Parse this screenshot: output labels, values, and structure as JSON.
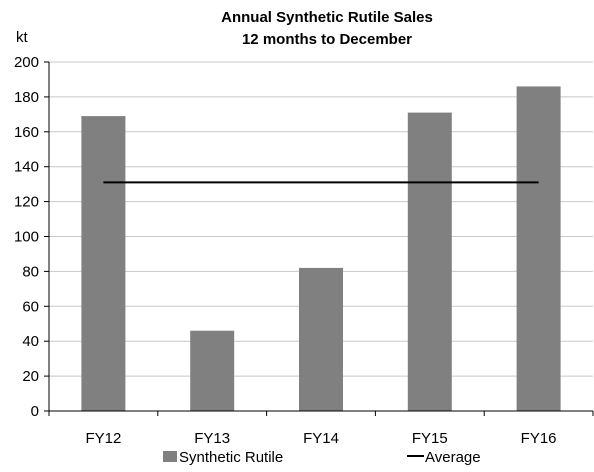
{
  "chart_data": {
    "type": "bar",
    "title": "Annual Synthetic Rutile Sales",
    "subtitle": "12 months to December",
    "ylabel": "kt",
    "xlabel": "",
    "categories": [
      "FY12",
      "FY13",
      "FY14",
      "FY15",
      "FY16"
    ],
    "series": [
      {
        "name": "Synthetic Rutile",
        "type": "bar",
        "color": "#808080",
        "values": [
          169,
          46,
          82,
          171,
          186
        ]
      },
      {
        "name": "Average",
        "type": "line",
        "color": "#000000",
        "values": [
          131,
          131,
          131,
          131,
          131
        ]
      }
    ],
    "ylim": [
      0,
      200
    ],
    "yticks": [
      "0",
      "20",
      "40",
      "60",
      "80",
      "100",
      "120",
      "140",
      "160",
      "180",
      "200"
    ],
    "grid": true,
    "legend_position": "bottom"
  }
}
